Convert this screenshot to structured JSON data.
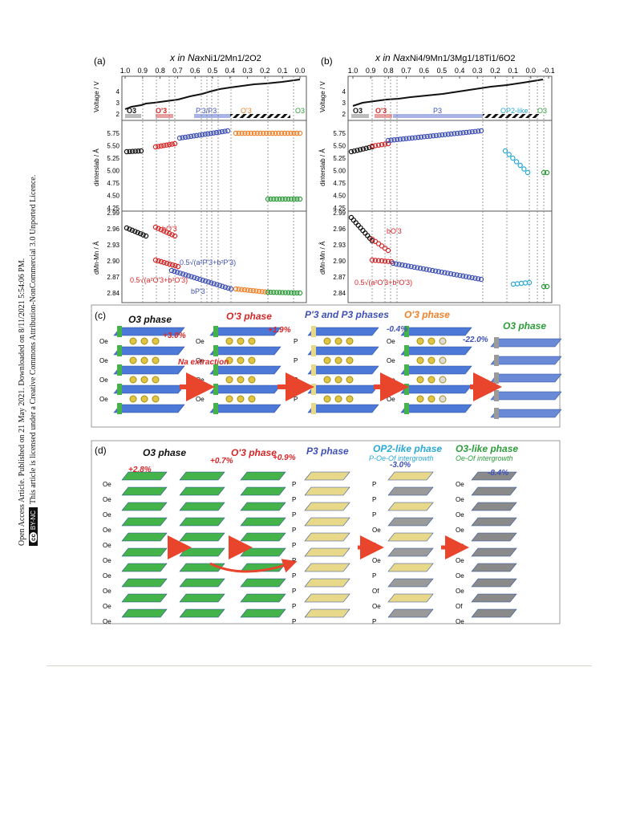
{
  "sidebar": {
    "line1": "Open Access Article. Published on 21 May 2021. Downloaded on 8/11/2021 5:54:06 PM.",
    "line2": "This article is licensed under a Creative Commons Attribution-NonCommercial 3.0 Unported Licence.",
    "badge": "BY-NC",
    "badge_cc": "cc"
  },
  "figure": {
    "panel_a": {
      "label": "(a)",
      "title_x": "x in Na",
      "title_formula": "xNi1/2Mn1/2O2",
      "x_ticks": [
        "1.0",
        "0.9",
        "0.8",
        "0.7",
        "0.6",
        "0.5",
        "0.4",
        "0.3",
        "0.2",
        "0.1",
        "0.0"
      ],
      "phases": [
        "O3",
        "O'3",
        "P'3/P3",
        "O'3",
        "O3"
      ],
      "annot": {
        "b": "bO'3",
        "a": "0.5√(a²O'3+b²O'3)",
        "p": "0.5√(a²P'3+b²P'3)",
        "bp": "bP'3"
      }
    },
    "panel_b": {
      "label": "(b)",
      "title_x": "x in Na",
      "title_formula": "xNi4/9Mn1/3Mg1/18Ti1/6O2",
      "x_ticks": [
        "1.0",
        "0.9",
        "0.8",
        "0.7",
        "0.6",
        "0.5",
        "0.4",
        "0.3",
        "0.2",
        "0.1",
        "0.0",
        "-0.1"
      ],
      "phases": [
        "O3",
        "O'3",
        "P3",
        "OP2-like",
        "O3"
      ],
      "annot": {
        "b": "bO'3",
        "a": "0.5√(a²O'3+b²O'3)"
      }
    },
    "y_labels": {
      "voltage": "Voltage / V",
      "interslab": "dinterslab / Å",
      "mnmn": "dMn-Mn / Å"
    },
    "voltage_ticks": [
      "2",
      "3",
      "4"
    ],
    "interslab_ticks": [
      "4.25",
      "4.50",
      "4.75",
      "5.00",
      "5.25",
      "5.50",
      "5.75"
    ],
    "mnmn_ticks": [
      "2.84",
      "2.87",
      "2.90",
      "2.93",
      "2.96",
      "2.99"
    ],
    "panel_c": {
      "label": "(c)",
      "phases": [
        "O3 phase",
        "O'3 phase",
        "P'3 and P3 phases",
        "O'3 phase",
        "O3 phase"
      ],
      "changes": [
        "+3.0%",
        "+1.9%",
        "-0.4%",
        "-22.0%"
      ],
      "arrow_text": "Na extraction",
      "layer_label_o": "Oe",
      "layer_label_p": "P"
    },
    "panel_d": {
      "label": "(d)",
      "phases": [
        "O3 phase",
        "O'3 phase",
        "P3 phase",
        "OP2-like phase",
        "O3-like phase"
      ],
      "subtitles": [
        "P-Oe-Of intergrowth",
        "Oe-Of intergrowth"
      ],
      "changes": [
        "+2.8%",
        "+0.7%",
        "+0.9%",
        "-3.0%",
        "-8.4%"
      ],
      "stack4_labels": [
        "P",
        "P",
        "P",
        "Oe",
        "P",
        "Oe",
        "P",
        "Of",
        "Oe",
        "P"
      ],
      "stack5_labels": [
        "Oe",
        "Oe",
        "Oe",
        "Oe",
        "Oe",
        "Oe",
        "Oe",
        "Oe",
        "Of",
        "Oe",
        "Oe"
      ]
    }
  }
}
